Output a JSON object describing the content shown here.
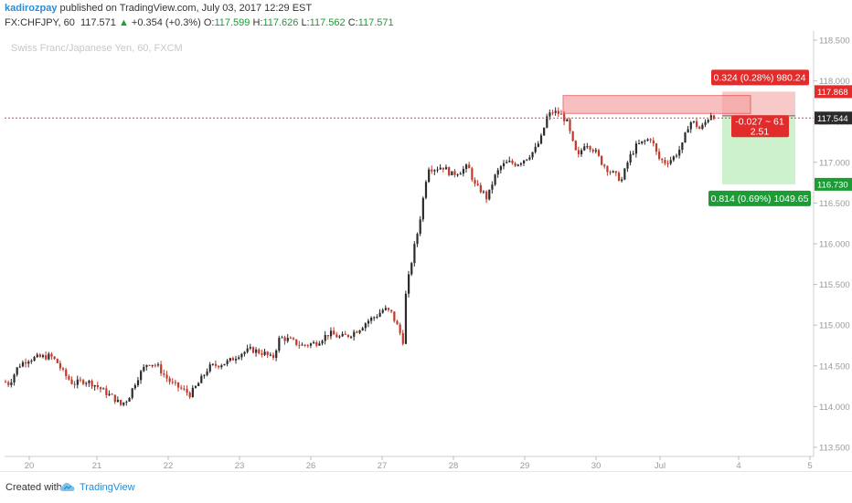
{
  "header": {
    "author": "kadirozpay",
    "published_text": " published on TradingView.com, July 03, 2017 12:29 EST",
    "symbol": "FX:CHFJPY, 60",
    "last": "117.571",
    "arrow": "▲",
    "change": "+0.354 (+0.3%)",
    "o_label": "O:",
    "o_value": "117.599",
    "h_label": "H:",
    "h_value": "117.626",
    "l_label": "L:",
    "l_value": "117.562",
    "c_label": "C:",
    "c_value": "117.571"
  },
  "watermark": "Swiss Franc/Japanese Yen, 60, FXCM",
  "footer": {
    "created_with": "Created with",
    "brand": "TradingView"
  },
  "colors": {
    "up": "#2b2b2b",
    "down": "#c0392b",
    "green": "#1b9c34",
    "red": "#e22b2b",
    "stop_zone": "#f4b7b7",
    "target_zone": "#c8eec8",
    "hline": "#e04040"
  },
  "chart_data": {
    "type": "candlestick",
    "symbol": "CHFJPY",
    "timeframe": "60",
    "x_ticks": [
      "20",
      "21",
      "22",
      "23",
      "26",
      "27",
      "28",
      "29",
      "30",
      "Jul",
      "4",
      "5"
    ],
    "y_ticks": [
      "118.500",
      "118.000",
      "117.500",
      "117.000",
      "116.500",
      "116.000",
      "115.500",
      "115.000",
      "114.500",
      "114.000",
      "113.500"
    ],
    "ylim": [
      113.5,
      118.5
    ],
    "current_price": 117.544,
    "current_price_label": "117.544",
    "stop_price": 117.868,
    "stop_price_label": "117.868",
    "target_price": 116.73,
    "target_price_label": "116.730",
    "entry_price": 117.571,
    "stop_label": "0.324 (0.28%) 980.24",
    "target_label": "0.814 (0.69%) 1049.65",
    "pnl_label_line1": "-0.027 ~ 61",
    "pnl_label_line2": "2.51",
    "path": [
      [
        0,
        114.33
      ],
      [
        10,
        114.28
      ],
      [
        20,
        114.5
      ],
      [
        30,
        114.58
      ],
      [
        40,
        114.6
      ],
      [
        55,
        114.62
      ],
      [
        62,
        114.55
      ],
      [
        70,
        114.4
      ],
      [
        80,
        114.28
      ],
      [
        92,
        114.32
      ],
      [
        102,
        114.28
      ],
      [
        112,
        114.2
      ],
      [
        125,
        114.1
      ],
      [
        132,
        114.02
      ],
      [
        140,
        114.1
      ],
      [
        150,
        114.35
      ],
      [
        162,
        114.55
      ],
      [
        172,
        114.5
      ],
      [
        180,
        114.38
      ],
      [
        188,
        114.28
      ],
      [
        198,
        114.22
      ],
      [
        208,
        114.15
      ],
      [
        218,
        114.3
      ],
      [
        228,
        114.48
      ],
      [
        240,
        114.52
      ],
      [
        250,
        114.55
      ],
      [
        262,
        114.65
      ],
      [
        275,
        114.7
      ],
      [
        290,
        114.65
      ],
      [
        298,
        114.58
      ],
      [
        306,
        114.85
      ],
      [
        316,
        114.82
      ],
      [
        330,
        114.75
      ],
      [
        345,
        114.78
      ],
      [
        360,
        114.9
      ],
      [
        372,
        114.85
      ],
      [
        382,
        114.88
      ],
      [
        392,
        114.95
      ],
      [
        402,
        115.05
      ],
      [
        412,
        115.12
      ],
      [
        420,
        115.2
      ],
      [
        428,
        115.15
      ],
      [
        436,
        114.95
      ],
      [
        441,
        114.8
      ],
      [
        444,
        115.4
      ],
      [
        448,
        115.65
      ],
      [
        452,
        115.9
      ],
      [
        456,
        116.1
      ],
      [
        460,
        116.35
      ],
      [
        464,
        116.65
      ],
      [
        468,
        116.95
      ],
      [
        474,
        116.92
      ],
      [
        484,
        116.95
      ],
      [
        494,
        116.85
      ],
      [
        505,
        116.9
      ],
      [
        512,
        116.95
      ],
      [
        520,
        116.7
      ],
      [
        527,
        116.65
      ],
      [
        533,
        116.55
      ],
      [
        540,
        116.8
      ],
      [
        548,
        116.95
      ],
      [
        556,
        117.0
      ],
      [
        565,
        116.98
      ],
      [
        575,
        117.05
      ],
      [
        585,
        117.15
      ],
      [
        592,
        117.3
      ],
      [
        598,
        117.55
      ],
      [
        604,
        117.62
      ],
      [
        612,
        117.6
      ],
      [
        620,
        117.5
      ],
      [
        626,
        117.25
      ],
      [
        632,
        117.05
      ],
      [
        640,
        117.25
      ],
      [
        650,
        117.15
      ],
      [
        658,
        117.0
      ],
      [
        666,
        116.9
      ],
      [
        672,
        116.85
      ],
      [
        680,
        116.78
      ],
      [
        688,
        117.05
      ],
      [
        696,
        117.2
      ],
      [
        704,
        117.25
      ],
      [
        712,
        117.3
      ],
      [
        720,
        117.05
      ],
      [
        728,
        117.0
      ],
      [
        736,
        117.05
      ],
      [
        746,
        117.2
      ],
      [
        754,
        117.5
      ],
      [
        760,
        117.48
      ],
      [
        766,
        117.4
      ],
      [
        772,
        117.5
      ],
      [
        778,
        117.6
      ],
      [
        784,
        117.54
      ]
    ]
  }
}
